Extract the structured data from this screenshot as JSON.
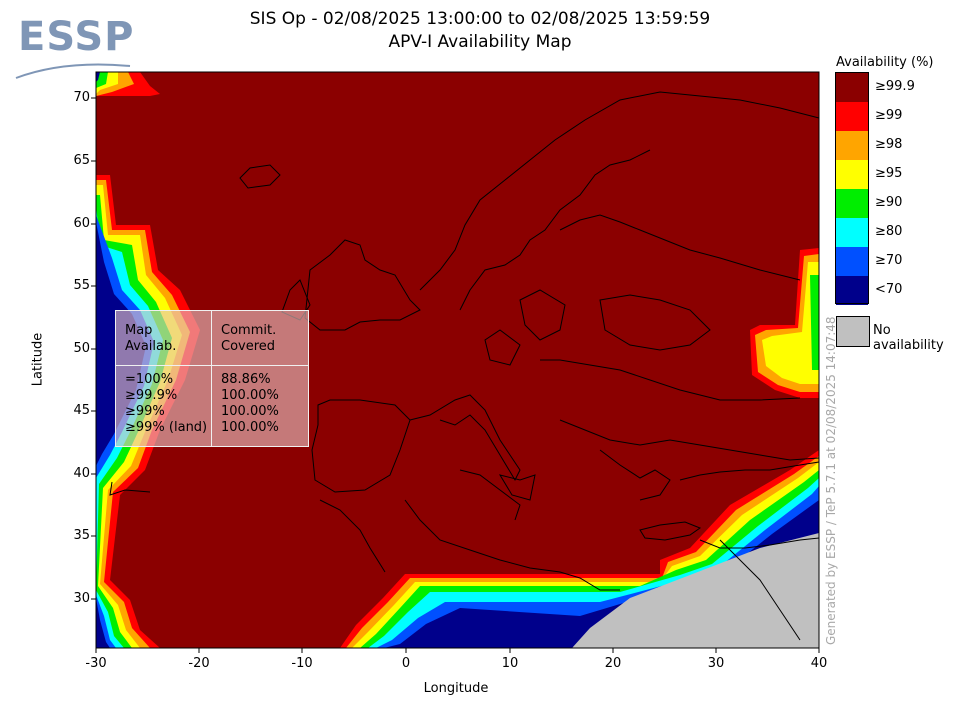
{
  "header": {
    "title_line1": "SIS Op - 02/08/2025 13:00:00 to 02/08/2025 13:59:59",
    "title_line2": "APV-I Availability Map"
  },
  "logo": {
    "text": "ESSP"
  },
  "axes": {
    "xlabel": "Longitude",
    "ylabel": "Latitude",
    "xticks": [
      "-30",
      "-20",
      "-10",
      "0",
      "10",
      "20",
      "30",
      "40"
    ],
    "yticks": [
      "70",
      "65",
      "60",
      "55",
      "50",
      "45",
      "40",
      "35",
      "30"
    ]
  },
  "legend": {
    "title": "Availability (%)",
    "items": [
      {
        "label": "≥99.9",
        "color": "#8b0000"
      },
      {
        "label": "≥99",
        "color": "#ff0000"
      },
      {
        "label": "≥98",
        "color": "#ffa500"
      },
      {
        "label": "≥95",
        "color": "#ffff00"
      },
      {
        "label": "≥90",
        "color": "#00ee00"
      },
      {
        "label": "≥80",
        "color": "#00ffff"
      },
      {
        "label": "≥70",
        "color": "#0050ff"
      },
      {
        "label": "<70",
        "color": "#00008b"
      }
    ],
    "no_availability": {
      "label": "No availability",
      "color": "#c0c0c0"
    }
  },
  "stats_table": {
    "col1_header": [
      "Map",
      "Availab."
    ],
    "col2_header": [
      "Commit.",
      "Covered"
    ],
    "rows": [
      {
        "avail": "=100%",
        "covered": "88.86%"
      },
      {
        "avail": "≥99.9%",
        "covered": "100.00%"
      },
      {
        "avail": "≥99%",
        "covered": "100.00%"
      },
      {
        "avail": "≥99% (land)",
        "covered": "100.00%"
      }
    ]
  },
  "footer_note": "Generated by ESSP / TeP 5.7.1 at 02/08/2025 14:07:48",
  "map_extent": {
    "lon": [
      -30,
      40
    ],
    "lat": [
      26,
      72
    ]
  }
}
